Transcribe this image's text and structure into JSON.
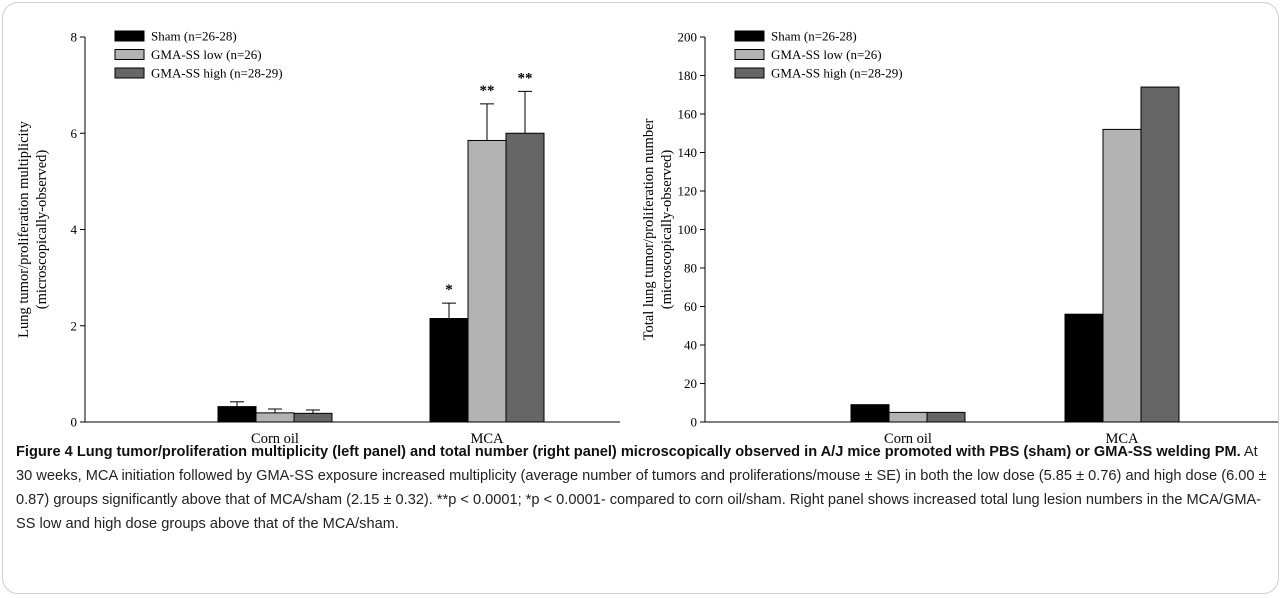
{
  "chart_data": [
    {
      "type": "bar",
      "ylabel_line1": "Lung tumor/proliferation multiplicity",
      "ylabel_line2": "(microscopically-observed)",
      "ylim": [
        0,
        8
      ],
      "yticks": [
        0,
        2,
        4,
        6,
        8
      ],
      "categories": [
        "Corn oil",
        "MCA"
      ],
      "series": [
        {
          "name": "Sham (n=26-28)",
          "color": "#000000",
          "values": [
            0.32,
            2.15
          ],
          "errors": [
            0.1,
            0.32
          ],
          "annotations": [
            "",
            "*"
          ]
        },
        {
          "name": "GMA-SS low (n=26)",
          "color": "#b3b3b3",
          "values": [
            0.19,
            5.85
          ],
          "errors": [
            0.08,
            0.76
          ],
          "annotations": [
            "",
            "**"
          ]
        },
        {
          "name": "GMA-SS high (n=28-29)",
          "color": "#666666",
          "values": [
            0.18,
            6.0
          ],
          "errors": [
            0.07,
            0.87
          ],
          "annotations": [
            "",
            "**"
          ]
        }
      ],
      "legend": "top-left",
      "grid": false
    },
    {
      "type": "bar",
      "ylabel_line1": "Total lung tumor/proliferation number",
      "ylabel_line2": "(microscopically-observed)",
      "ylim": [
        0,
        200
      ],
      "yticks": [
        0,
        20,
        40,
        60,
        80,
        100,
        120,
        140,
        160,
        180,
        200
      ],
      "categories": [
        "Corn oil",
        "MCA"
      ],
      "series": [
        {
          "name": "Sham (n=26-28)",
          "color": "#000000",
          "values": [
            9,
            56
          ]
        },
        {
          "name": "GMA-SS low (n=26)",
          "color": "#b3b3b3",
          "values": [
            5,
            152
          ]
        },
        {
          "name": "GMA-SS high (n=28-29)",
          "color": "#666666",
          "values": [
            5,
            174
          ]
        }
      ],
      "legend": "top-left",
      "grid": false
    }
  ],
  "caption": {
    "title": "Figure 4 Lung tumor/proliferation multiplicity (left panel) and total number (right panel) microscopically observed in A/J mice promoted with PBS (sham) or GMA-SS welding PM.",
    "body": " At 30 weeks, MCA initiation followed by GMA-SS exposure increased multiplicity (average number of tumors and proliferations/mouse ± SE) in both the low dose (5.85 ± 0.76) and high dose (6.00 ± 0.87) groups significantly above that of MCA/sham (2.15 ± 0.32). **p < 0.0001; *p < 0.0001- compared to corn oil/sham. Right panel shows increased total lung lesion numbers in the MCA/GMA-SS low and high dose groups above that of the MCA/sham."
  }
}
